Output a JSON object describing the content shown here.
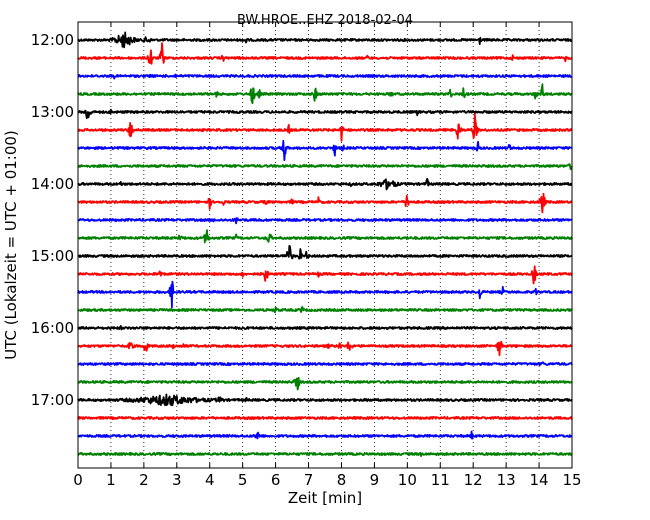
{
  "chart_data": {
    "type": "line",
    "title": "BW.HROE..EHZ 2018-02-04",
    "xlabel": "Zeit  [min]",
    "ylabel": "UTC (Lokalzeit = UTC + 01:00)",
    "xlim": [
      0,
      15
    ],
    "x_ticks": [
      "0",
      "1",
      "2",
      "3",
      "4",
      "5",
      "6",
      "7",
      "8",
      "9",
      "10",
      "11",
      "12",
      "13",
      "14",
      "15"
    ],
    "y_ticks": [
      "12:00",
      "13:00",
      "14:00",
      "15:00",
      "16:00",
      "17:00"
    ],
    "grid": "vertical dotted lines at each minute",
    "trace_colors": [
      "#000000",
      "#ff0000",
      "#0000ff",
      "#008000"
    ],
    "series": [
      {
        "start": "12:00",
        "color": "black",
        "bursts": [
          [
            1.4,
            0.5,
            0.35
          ],
          [
            2.1,
            0.25,
            0.15
          ],
          [
            5.1,
            0.35,
            0.05
          ],
          [
            12.2,
            0.3,
            0.05
          ]
        ]
      },
      {
        "start": "12:15",
        "color": "red",
        "bursts": [
          [
            2.2,
            1.0,
            0.06
          ],
          [
            2.55,
            0.95,
            0.06
          ],
          [
            4.4,
            0.3,
            0.05
          ],
          [
            8.8,
            0.25,
            0.05
          ],
          [
            13.2,
            0.2,
            0.05
          ],
          [
            14.8,
            0.2,
            0.05
          ]
        ]
      },
      {
        "start": "12:30",
        "color": "blue",
        "bursts": [
          [
            1.1,
            0.15,
            0.05
          ],
          [
            2.2,
            0.2,
            0.05
          ],
          [
            2.95,
            0.15,
            0.05
          ],
          [
            12.2,
            0.15,
            0.05
          ]
        ]
      },
      {
        "start": "12:45",
        "color": "green",
        "bursts": [
          [
            4.2,
            0.3,
            0.05
          ],
          [
            5.3,
            0.9,
            0.06
          ],
          [
            5.5,
            0.4,
            0.05
          ],
          [
            7.2,
            0.6,
            0.06
          ],
          [
            9.5,
            0.3,
            0.05
          ],
          [
            11.3,
            0.4,
            0.05
          ],
          [
            11.7,
            0.5,
            0.05
          ],
          [
            13.9,
            0.5,
            0.05
          ],
          [
            14.1,
            0.6,
            0.05
          ]
        ]
      },
      {
        "start": "13:00",
        "color": "black",
        "bursts": [
          [
            0.3,
            0.9,
            0.07
          ],
          [
            1.0,
            0.2,
            0.05
          ],
          [
            10.3,
            0.25,
            0.05
          ]
        ]
      },
      {
        "start": "13:15",
        "color": "red",
        "bursts": [
          [
            1.6,
            0.8,
            0.06
          ],
          [
            6.4,
            0.3,
            0.05
          ],
          [
            8.0,
            0.6,
            0.06
          ],
          [
            11.55,
            0.9,
            0.06
          ],
          [
            12.05,
            0.95,
            0.07
          ]
        ]
      },
      {
        "start": "13:30",
        "color": "blue",
        "bursts": [
          [
            6.25,
            1.0,
            0.07
          ],
          [
            7.8,
            0.5,
            0.05
          ],
          [
            8.05,
            0.25,
            0.05
          ],
          [
            12.15,
            0.4,
            0.05
          ],
          [
            13.1,
            0.3,
            0.05
          ]
        ]
      },
      {
        "start": "13:45",
        "color": "green",
        "bursts": [
          [
            14.95,
            0.4,
            0.04
          ]
        ]
      },
      {
        "start": "14:00",
        "color": "black",
        "bursts": [
          [
            1.3,
            0.2,
            0.05
          ],
          [
            2.8,
            0.15,
            0.05
          ],
          [
            8.3,
            0.2,
            0.05
          ],
          [
            9.4,
            0.35,
            0.35
          ],
          [
            10.6,
            0.45,
            0.05
          ]
        ]
      },
      {
        "start": "14:15",
        "color": "red",
        "bursts": [
          [
            4.0,
            0.45,
            0.05
          ],
          [
            4.4,
            0.3,
            0.05
          ],
          [
            5.7,
            0.3,
            0.05
          ],
          [
            6.5,
            0.25,
            0.05
          ],
          [
            7.3,
            0.3,
            0.05
          ],
          [
            10.0,
            0.8,
            0.06
          ],
          [
            14.1,
            0.95,
            0.07
          ]
        ]
      },
      {
        "start": "14:30",
        "color": "blue",
        "bursts": [
          [
            4.1,
            0.15,
            0.05
          ],
          [
            4.8,
            0.25,
            0.08
          ],
          [
            5.5,
            0.15,
            0.05
          ]
        ]
      },
      {
        "start": "14:45",
        "color": "green",
        "bursts": [
          [
            3.1,
            0.4,
            0.05
          ],
          [
            3.9,
            0.85,
            0.06
          ],
          [
            4.8,
            0.2,
            0.05
          ],
          [
            5.8,
            0.45,
            0.08
          ],
          [
            10.0,
            0.15,
            0.05
          ]
        ]
      },
      {
        "start": "15:00",
        "color": "black",
        "bursts": [
          [
            6.4,
            1.0,
            0.08
          ],
          [
            6.75,
            0.45,
            0.05
          ],
          [
            6.95,
            0.4,
            0.05
          ]
        ]
      },
      {
        "start": "15:15",
        "color": "red",
        "bursts": [
          [
            2.5,
            0.4,
            0.05
          ],
          [
            5.0,
            0.3,
            0.05
          ],
          [
            5.7,
            0.7,
            0.06
          ],
          [
            7.3,
            0.2,
            0.05
          ],
          [
            13.85,
            0.8,
            0.06
          ]
        ]
      },
      {
        "start": "15:30",
        "color": "blue",
        "bursts": [
          [
            2.85,
            0.9,
            0.07
          ],
          [
            12.2,
            0.5,
            0.05
          ],
          [
            12.9,
            0.3,
            0.05
          ],
          [
            13.9,
            0.3,
            0.05
          ]
        ]
      },
      {
        "start": "15:45",
        "color": "green",
        "bursts": [
          [
            6.0,
            0.35,
            0.05
          ],
          [
            6.8,
            0.35,
            0.05
          ],
          [
            7.3,
            0.2,
            0.05
          ]
        ]
      },
      {
        "start": "16:00",
        "color": "black",
        "bursts": [
          [
            1.3,
            0.15,
            0.05
          ]
        ]
      },
      {
        "start": "16:15",
        "color": "red",
        "bursts": [
          [
            1.6,
            0.55,
            0.06
          ],
          [
            2.05,
            0.65,
            0.06
          ],
          [
            2.9,
            0.4,
            0.05
          ],
          [
            3.2,
            0.25,
            0.05
          ],
          [
            7.6,
            0.2,
            0.05
          ],
          [
            7.95,
            0.35,
            0.05
          ],
          [
            8.25,
            0.7,
            0.06
          ],
          [
            12.8,
            0.85,
            0.06
          ]
        ]
      },
      {
        "start": "16:30",
        "color": "blue",
        "bursts": [
          [
            14.1,
            0.2,
            0.05
          ]
        ]
      },
      {
        "start": "16:45",
        "color": "green",
        "bursts": [
          [
            6.65,
            0.6,
            0.08
          ]
        ]
      },
      {
        "start": "17:00",
        "color": "black",
        "bursts": [
          [
            2.7,
            0.35,
            1.3
          ],
          [
            4.3,
            0.2,
            0.2
          ],
          [
            5.1,
            0.2,
            0.05
          ],
          [
            8.8,
            0.2,
            0.05
          ]
        ]
      },
      {
        "start": "17:15",
        "color": "red",
        "bursts": []
      },
      {
        "start": "17:30",
        "color": "blue",
        "bursts": [
          [
            5.45,
            0.5,
            0.06
          ],
          [
            11.95,
            0.3,
            0.05
          ]
        ]
      },
      {
        "start": "17:45",
        "color": "green",
        "bursts": [
          [
            10.4,
            0.2,
            0.05
          ]
        ]
      }
    ]
  }
}
